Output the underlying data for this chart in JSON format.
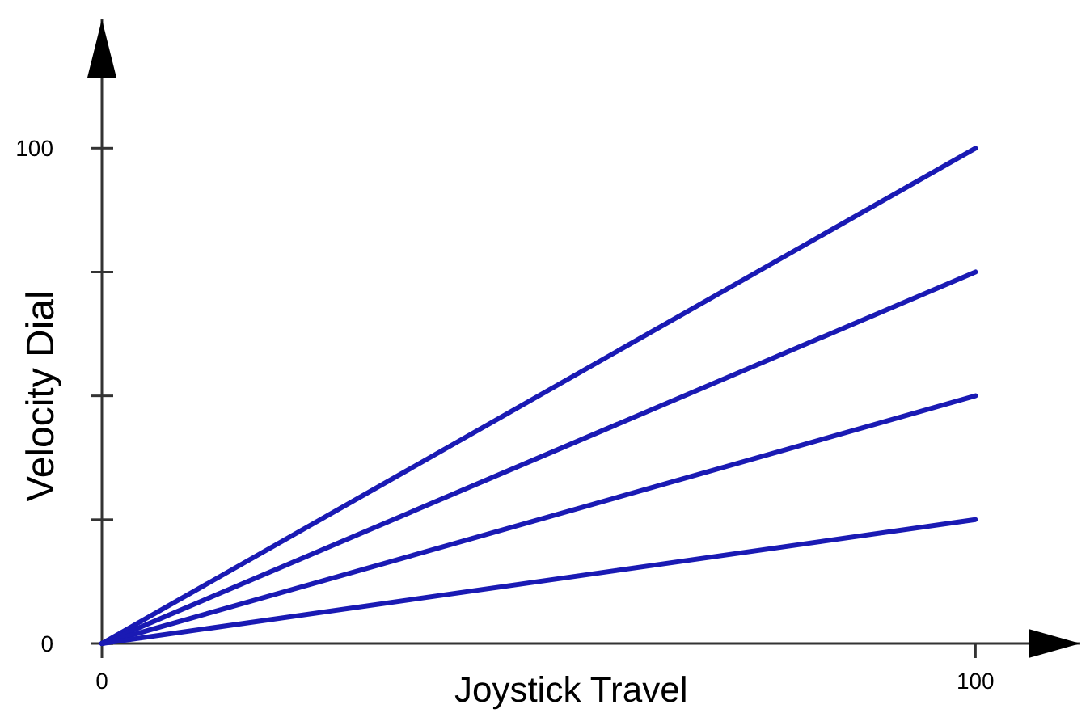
{
  "chart_data": {
    "type": "line",
    "xlabel": "Joystick Travel",
    "ylabel": "Velocity Dial",
    "x": [
      0,
      100
    ],
    "series": [
      {
        "color": "#1a1ab4",
        "values": [
          0,
          100
        ]
      },
      {
        "color": "#1a1ab4",
        "values": [
          0,
          75
        ]
      },
      {
        "color": "#1a1ab4",
        "values": [
          0,
          50
        ]
      },
      {
        "color": "#1a1ab4",
        "values": [
          0,
          25
        ]
      }
    ],
    "xlim": [
      0,
      112
    ],
    "ylim": [
      0,
      126
    ],
    "xticks": [
      0,
      100
    ],
    "yticks": [
      0,
      {
        "value": 25,
        "label": null
      },
      {
        "value": 50,
        "label": null
      },
      {
        "value": 75,
        "label": null
      },
      100
    ],
    "grid": false,
    "marker": "none",
    "line_style": "solid"
  }
}
